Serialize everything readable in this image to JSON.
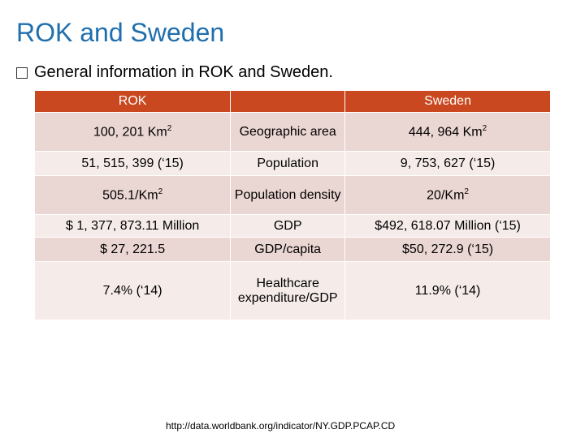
{
  "slide": {
    "title": "ROK and Sweden",
    "bullet": "General information in ROK and Sweden.",
    "footer": "http://data.worldbank.org/indicator/NY.GDP.PCAP.CD"
  },
  "table": {
    "headers": [
      "ROK",
      "",
      "Sweden"
    ],
    "rows": [
      {
        "rok": "100, 201 Km",
        "rok_sup": "2",
        "label": "Geographic area",
        "sweden": "444, 964 Km",
        "sweden_sup": "2"
      },
      {
        "rok": "51, 515, 399 (‘15)",
        "label": "Population",
        "sweden": "9, 753, 627 (‘15)"
      },
      {
        "rok": "505.1/Km",
        "rok_sup": "2",
        "label": "Population density",
        "sweden": "20/Km",
        "sweden_sup": "2"
      },
      {
        "rok": "$ 1, 377, 873.11 Million",
        "label": "GDP",
        "sweden": "$492, 618.07 Million (‘15)"
      },
      {
        "rok": "$ 27, 221.5",
        "label": "GDP/capita",
        "sweden": "$50, 272.9 (‘15)"
      },
      {
        "rok": "7.4% (‘14)",
        "label": "Healthcare expenditure/GDP",
        "sweden": "11.9% (‘14)"
      }
    ]
  }
}
